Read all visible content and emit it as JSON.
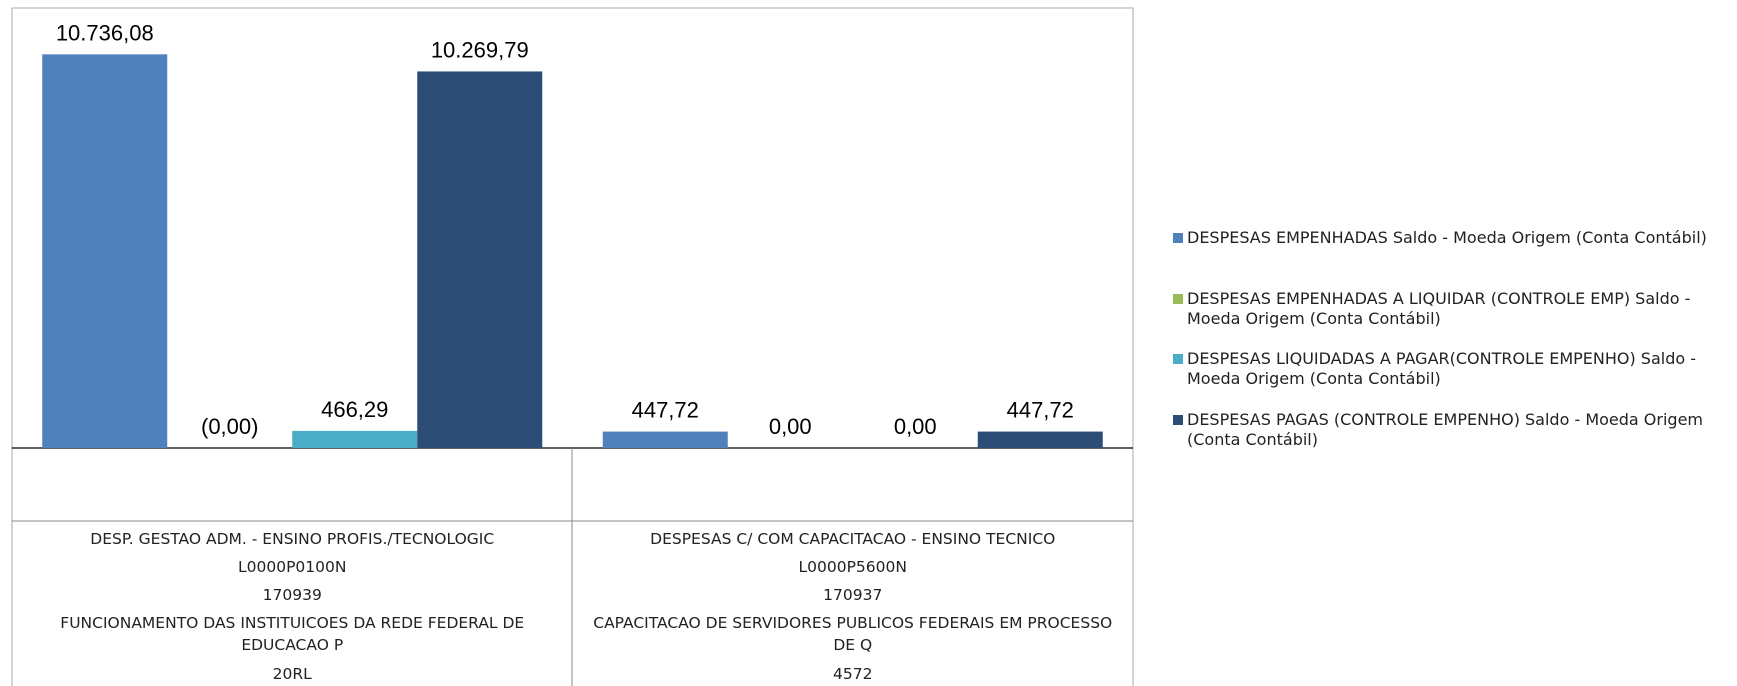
{
  "chart_data": {
    "type": "bar",
    "categories": [
      [
        "DESP. GESTAO ADM. - ENSINO PROFIS./TECNOLOGIC",
        "L0000P0100N",
        "170939",
        "FUNCIONAMENTO DAS INSTITUICOES DA REDE FEDERAL DE EDUCACAO P",
        "20RL"
      ],
      [
        "DESPESAS C/ COM  CAPACITACAO - ENSINO TECNICO",
        "L0000P5600N",
        "170937",
        "CAPACITACAO DE SERVIDORES PUBLICOS FEDERAIS EM PROCESSO DE Q",
        "4572"
      ]
    ],
    "series": [
      {
        "name": "DESPESAS EMPENHADAS Saldo - Moeda Origem (Conta Contábil)",
        "color": "#4f81bd",
        "values": [
          10736.08,
          447.72
        ],
        "value_labels": [
          "10.736,08",
          "447,72"
        ]
      },
      {
        "name": "DESPESAS EMPENHADAS A LIQUIDAR (CONTROLE EMP) Saldo - Moeda Origem (Conta Contábil)",
        "color": "#9bbb59",
        "values": [
          0,
          0
        ],
        "value_labels": [
          "(0,00)",
          "0,00"
        ]
      },
      {
        "name": "DESPESAS LIQUIDADAS A PAGAR(CONTROLE EMPENHO) Saldo - Moeda Origem (Conta Contábil)",
        "color": "#4bacc6",
        "values": [
          466.29,
          0
        ],
        "value_labels": [
          "466,29",
          "0,00"
        ]
      },
      {
        "name": "DESPESAS PAGAS (CONTROLE EMPENHO) Saldo - Moeda Origem (Conta Contábil)",
        "color": "#2c4d75",
        "values": [
          10269.79,
          447.72
        ],
        "value_labels": [
          "10.269,79",
          "447,72"
        ]
      }
    ],
    "ylim": [
      0,
      12000
    ]
  }
}
